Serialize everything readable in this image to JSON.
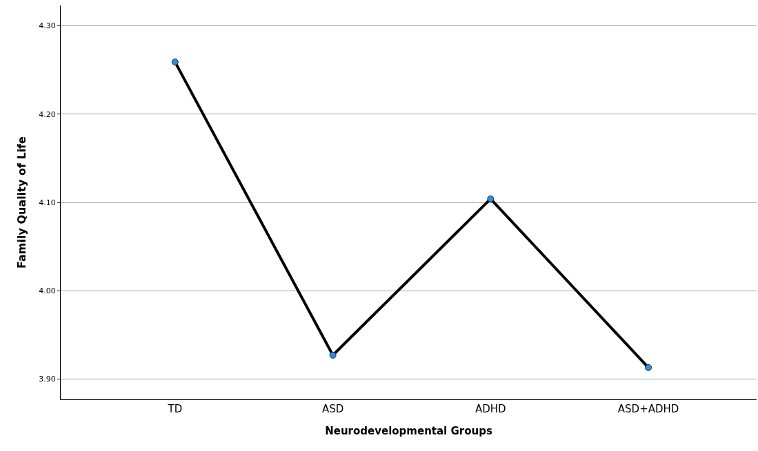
{
  "chart_data": {
    "type": "line",
    "xlabel": "Neurodevelopmental Groups",
    "ylabel": "Family Quality of Life",
    "categories": [
      "TD",
      "ASD",
      "ADHD",
      "ASD+ADHD"
    ],
    "series": [
      {
        "color": "#000000",
        "values": [
          4.259,
          3.927,
          4.104,
          3.913
        ]
      }
    ],
    "ylim": [
      3.877,
      4.323
    ],
    "yticks": [
      {
        "value": 3.9,
        "label": "3.90"
      },
      {
        "value": 4.0,
        "label": "4.00"
      },
      {
        "value": 4.1,
        "label": "4.10"
      },
      {
        "value": 4.2,
        "label": "4.20"
      },
      {
        "value": 4.3,
        "label": "4.30"
      }
    ],
    "grid": "y",
    "marker": "circle",
    "line_style": "solid"
  }
}
